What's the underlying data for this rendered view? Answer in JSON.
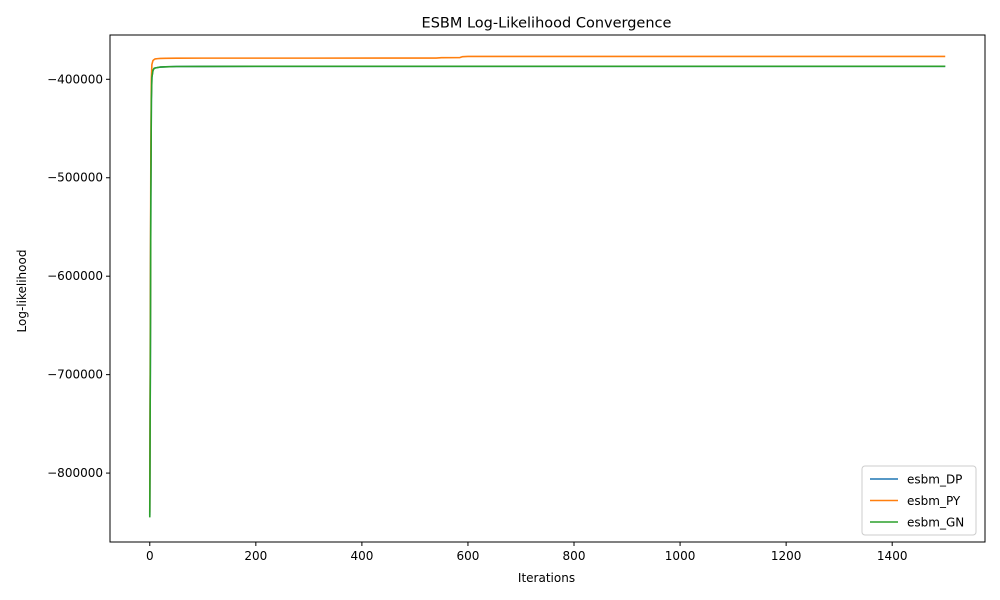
{
  "chart_data": {
    "type": "line",
    "title": "ESBM Log-Likelihood Convergence",
    "xlabel": "Iterations",
    "ylabel": "Log-likelihood",
    "xlim": [
      -75,
      1575
    ],
    "ylim": [
      -870000,
      -355000
    ],
    "xticks": [
      0,
      200,
      400,
      600,
      800,
      1000,
      1200,
      1400
    ],
    "yticks": [
      -800000,
      -700000,
      -600000,
      -500000,
      -400000
    ],
    "xtick_labels": [
      "0",
      "200",
      "400",
      "600",
      "800",
      "1000",
      "1200",
      "1400"
    ],
    "ytick_labels": [
      "−800000",
      "−700000",
      "−600000",
      "−500000",
      "−400000"
    ],
    "grid": false,
    "legend_position": "lower-right",
    "series": [
      {
        "name": "esbm_DP",
        "color": "#1f77b4",
        "x": [
          0,
          1,
          2,
          3,
          4,
          6,
          8,
          10,
          15,
          20,
          30,
          50,
          100,
          300,
          600,
          1000,
          1500
        ],
        "y": [
          -843000,
          -700000,
          -520000,
          -420000,
          -398000,
          -391000,
          -389000,
          -388500,
          -388000,
          -387600,
          -387300,
          -387000,
          -386900,
          -386800,
          -386800,
          -386800,
          -386800
        ]
      },
      {
        "name": "esbm_PY",
        "color": "#ff7f0e",
        "x": [
          0,
          1,
          2,
          3,
          4,
          6,
          8,
          10,
          15,
          20,
          30,
          50,
          100,
          300,
          540,
          550,
          585,
          590,
          600,
          1000,
          1500
        ],
        "y": [
          -840000,
          -650000,
          -480000,
          -400000,
          -385000,
          -381000,
          -380000,
          -379300,
          -379000,
          -378800,
          -378700,
          -378600,
          -378500,
          -378500,
          -378400,
          -378000,
          -377900,
          -377000,
          -376800,
          -376800,
          -376800
        ]
      },
      {
        "name": "esbm_GN",
        "color": "#2ca02c",
        "x": [
          0,
          1,
          2,
          3,
          4,
          6,
          8,
          10,
          15,
          20,
          30,
          50,
          100,
          300,
          600,
          1000,
          1500
        ],
        "y": [
          -845000,
          -700000,
          -520000,
          -420000,
          -398000,
          -391000,
          -389000,
          -388500,
          -388000,
          -387600,
          -387300,
          -387000,
          -386900,
          -386800,
          -386800,
          -386800,
          -386800
        ]
      }
    ]
  }
}
